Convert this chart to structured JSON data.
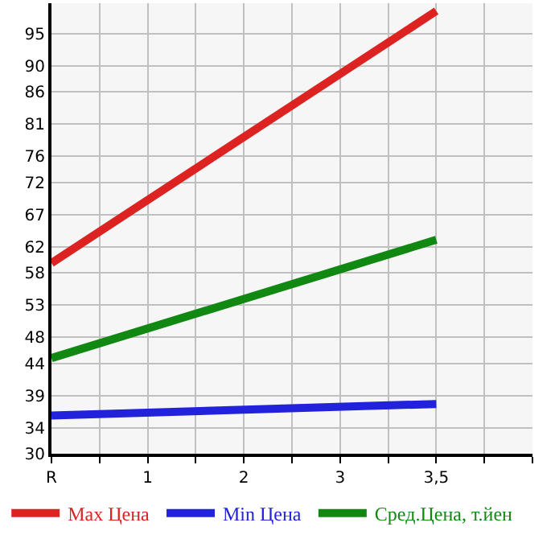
{
  "chart_data": {
    "type": "line",
    "categories": [
      "R",
      "1",
      "2",
      "3",
      "3,5"
    ],
    "series": [
      {
        "name": "Max Цена",
        "color": "#dd2222",
        "values": [
          59.5,
          null,
          null,
          null,
          98.5
        ]
      },
      {
        "name": "Min Цена",
        "color": "#2222dd",
        "values": [
          35.9,
          null,
          null,
          null,
          37.7
        ]
      },
      {
        "name": "Сред.Цена, т.йен",
        "color": "#118811",
        "values": [
          44.8,
          null,
          null,
          null,
          63.1
        ]
      }
    ],
    "ylim": [
      30,
      99.7
    ],
    "yticks": [
      30,
      34,
      39,
      44,
      48,
      53,
      58,
      62,
      67,
      72,
      76,
      81,
      86,
      90,
      95
    ],
    "grid": true,
    "legend": "bottom",
    "marker": "none",
    "line_style": "solid"
  }
}
